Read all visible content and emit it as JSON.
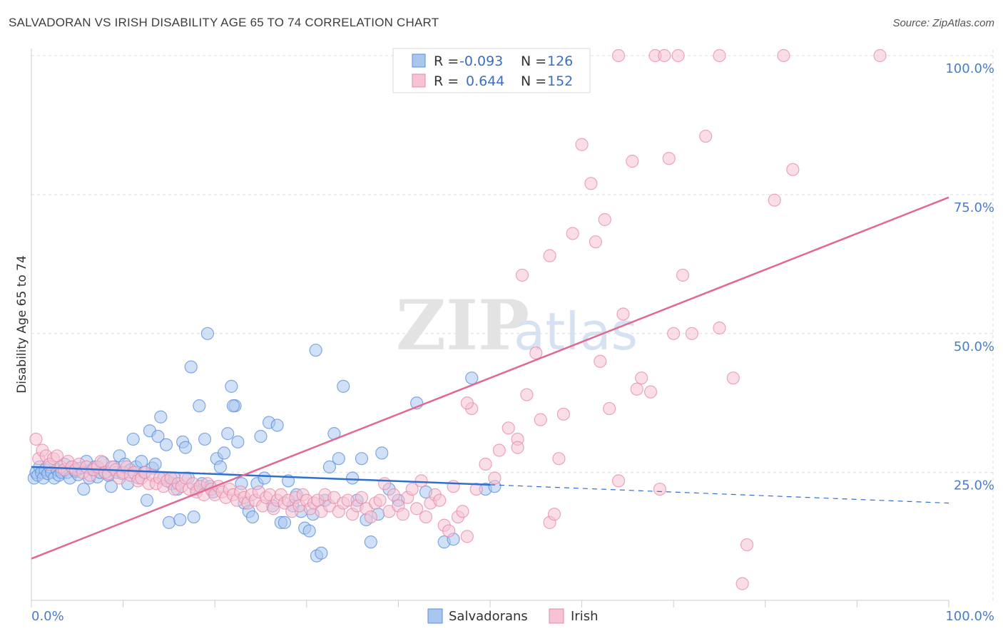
{
  "header": {
    "title": "SALVADORAN VS IRISH DISABILITY AGE 65 TO 74 CORRELATION CHART",
    "source": "Source: ZipAtlas.com"
  },
  "watermark": {
    "zip": "ZIP",
    "atlas": "atlas"
  },
  "colors": {
    "salvadoran": "#5b8fd9",
    "salvadoran_fill": "#a9c6ee",
    "salvadoran_line": "#2f6fcf",
    "irish": "#e58aa8",
    "irish_fill": "#f5c3d3",
    "irish_line": "#e06892",
    "grid": "#dddddd",
    "tick_text": "#4a7cc9"
  },
  "legend": {
    "rows": [
      {
        "r_label": "R =",
        "r_value": "-0.093",
        "n_label": "N =",
        "n_value": "126",
        "series": "salvadoran"
      },
      {
        "r_label": "R =",
        "r_value": "0.644",
        "n_label": "N =",
        "n_value": "152",
        "series": "irish"
      }
    ]
  },
  "bottom_legend": [
    "Salvadorans",
    "Irish"
  ],
  "chart_data": {
    "type": "scatter",
    "title": "SALVADORAN VS IRISH DISABILITY AGE 65 TO 74 CORRELATION CHART",
    "xlabel": "",
    "ylabel": "Disability Age 65 to 74",
    "xlim": [
      0,
      100
    ],
    "ylim": [
      2,
      100
    ],
    "x_tick_labels": [
      "0.0%",
      "100.0%"
    ],
    "y_ticks": [
      25,
      50,
      75,
      100
    ],
    "y_tick_labels": [
      "25.0%",
      "50.0%",
      "75.0%",
      "100.0%"
    ],
    "grid": true,
    "legend_position": "top-center",
    "series": [
      {
        "name": "Salvadorans",
        "r": -0.093,
        "n": 126,
        "trend": {
          "x": [
            0,
            50
          ],
          "y": [
            26,
            22.8
          ],
          "dashed_extension": {
            "x": [
              50,
              100
            ],
            "y": [
              22.8,
              19.5
            ]
          }
        },
        "points": [
          [
            0.3,
            24
          ],
          [
            0.5,
            25
          ],
          [
            0.7,
            24.5
          ],
          [
            0.9,
            26
          ],
          [
            1.1,
            25
          ],
          [
            1.3,
            24
          ],
          [
            1.5,
            25.5
          ],
          [
            1.8,
            24.8
          ],
          [
            2.0,
            26
          ],
          [
            2.2,
            25
          ],
          [
            2.5,
            24
          ],
          [
            2.8,
            25.5
          ],
          [
            3.0,
            24.5
          ],
          [
            3.3,
            25
          ],
          [
            3.6,
            26.5
          ],
          [
            3.9,
            25
          ],
          [
            4.2,
            24
          ],
          [
            4.5,
            26
          ],
          [
            4.8,
            25.2
          ],
          [
            5.1,
            24.6
          ],
          [
            5.4,
            25.8
          ],
          [
            5.7,
            22
          ],
          [
            6.0,
            27
          ],
          [
            6.3,
            24
          ],
          [
            6.6,
            25.5
          ],
          [
            6.9,
            26
          ],
          [
            7.2,
            24.2
          ],
          [
            7.5,
            25
          ],
          [
            7.8,
            26.8
          ],
          [
            8.1,
            25
          ],
          [
            8.4,
            24.5
          ],
          [
            8.7,
            22.5
          ],
          [
            9.0,
            26
          ],
          [
            9.3,
            25
          ],
          [
            9.6,
            28
          ],
          [
            9.9,
            24.8
          ],
          [
            10.2,
            26.5
          ],
          [
            10.5,
            23
          ],
          [
            10.8,
            25.5
          ],
          [
            11.1,
            31
          ],
          [
            11.4,
            26
          ],
          [
            11.7,
            24
          ],
          [
            12.0,
            27
          ],
          [
            12.3,
            25
          ],
          [
            12.6,
            20
          ],
          [
            12.9,
            32.5
          ],
          [
            13.2,
            25.8
          ],
          [
            13.5,
            26.5
          ],
          [
            13.8,
            31.5
          ],
          [
            14.1,
            35
          ],
          [
            14.4,
            24
          ],
          [
            14.7,
            30
          ],
          [
            15.0,
            16
          ],
          [
            15.3,
            23
          ],
          [
            15.6,
            24
          ],
          [
            15.9,
            22
          ],
          [
            16.2,
            16.5
          ],
          [
            16.5,
            30.5
          ],
          [
            16.8,
            29.5
          ],
          [
            17.1,
            24
          ],
          [
            17.4,
            44
          ],
          [
            17.7,
            17
          ],
          [
            18.0,
            22
          ],
          [
            18.3,
            37
          ],
          [
            18.6,
            23
          ],
          [
            18.9,
            31
          ],
          [
            19.2,
            50
          ],
          [
            19.5,
            22.5
          ],
          [
            19.8,
            21.5
          ],
          [
            20.2,
            27.5
          ],
          [
            20.6,
            26
          ],
          [
            21.0,
            28.5
          ],
          [
            21.4,
            32
          ],
          [
            21.8,
            40.5
          ],
          [
            22.2,
            37
          ],
          [
            22.5,
            30.5
          ],
          [
            22.9,
            23
          ],
          [
            23.2,
            19.5
          ],
          [
            23.7,
            18
          ],
          [
            24.1,
            17
          ],
          [
            24.6,
            23
          ],
          [
            25.0,
            31.5
          ],
          [
            25.4,
            24
          ],
          [
            25.9,
            34
          ],
          [
            26.3,
            19
          ],
          [
            26.8,
            33.5
          ],
          [
            27.2,
            16
          ],
          [
            27.6,
            16
          ],
          [
            28.0,
            23.5
          ],
          [
            28.5,
            19
          ],
          [
            28.9,
            21
          ],
          [
            29.4,
            18
          ],
          [
            29.8,
            15
          ],
          [
            30.3,
            14.5
          ],
          [
            30.7,
            17.5
          ],
          [
            31.1,
            10
          ],
          [
            31.6,
            10.5
          ],
          [
            31.0,
            47
          ],
          [
            32.0,
            20
          ],
          [
            32.5,
            26
          ],
          [
            33.0,
            32
          ],
          [
            33.5,
            27.5
          ],
          [
            34.0,
            40.5
          ],
          [
            35.0,
            24
          ],
          [
            35.5,
            20
          ],
          [
            36.0,
            27.5
          ],
          [
            36.5,
            16.5
          ],
          [
            37.0,
            12.5
          ],
          [
            37.8,
            17.5
          ],
          [
            38.2,
            28.5
          ],
          [
            39.0,
            22
          ],
          [
            40.0,
            20
          ],
          [
            42.0,
            37.5
          ],
          [
            43.0,
            21.5
          ],
          [
            45.0,
            12.5
          ],
          [
            46.0,
            13
          ],
          [
            48.0,
            42
          ],
          [
            49.5,
            22
          ],
          [
            50.5,
            22.5
          ],
          [
            22.0,
            37
          ]
        ]
      },
      {
        "name": "Irish",
        "r": 0.644,
        "n": 152,
        "trend": {
          "x": [
            0,
            100
          ],
          "y": [
            9.5,
            74.5
          ]
        },
        "points": [
          [
            0.5,
            31
          ],
          [
            0.8,
            27.5
          ],
          [
            1.2,
            29
          ],
          [
            1.6,
            28
          ],
          [
            2.0,
            26.5
          ],
          [
            2.4,
            27.5
          ],
          [
            2.8,
            28
          ],
          [
            3.2,
            26
          ],
          [
            3.6,
            25.5
          ],
          [
            4.0,
            27
          ],
          [
            4.4,
            26
          ],
          [
            4.8,
            25.5
          ],
          [
            5.2,
            26.5
          ],
          [
            5.6,
            25
          ],
          [
            6.0,
            26
          ],
          [
            6.4,
            24.5
          ],
          [
            6.8,
            25.5
          ],
          [
            7.2,
            26
          ],
          [
            7.6,
            27
          ],
          [
            8.0,
            25
          ],
          [
            8.4,
            24.8
          ],
          [
            8.8,
            26
          ],
          [
            9.2,
            25.5
          ],
          [
            9.6,
            24
          ],
          [
            10.0,
            25
          ],
          [
            10.4,
            26
          ],
          [
            10.8,
            24.5
          ],
          [
            11.2,
            25
          ],
          [
            11.6,
            23.5
          ],
          [
            12.0,
            24
          ],
          [
            12.4,
            25
          ],
          [
            12.8,
            23
          ],
          [
            13.2,
            24.5
          ],
          [
            13.6,
            23
          ],
          [
            14.0,
            24
          ],
          [
            14.4,
            22.5
          ],
          [
            14.8,
            23.5
          ],
          [
            15.2,
            24
          ],
          [
            15.6,
            22
          ],
          [
            16.0,
            23
          ],
          [
            16.4,
            22.5
          ],
          [
            16.8,
            24
          ],
          [
            17.2,
            22
          ],
          [
            17.6,
            23
          ],
          [
            18.0,
            21.5
          ],
          [
            18.4,
            22.5
          ],
          [
            18.8,
            21
          ],
          [
            19.2,
            23
          ],
          [
            19.6,
            22
          ],
          [
            20.0,
            21
          ],
          [
            20.4,
            22.5
          ],
          [
            20.8,
            21.5
          ],
          [
            21.2,
            20.5
          ],
          [
            21.6,
            22
          ],
          [
            22.0,
            21
          ],
          [
            22.4,
            20
          ],
          [
            22.8,
            21.5
          ],
          [
            23.2,
            20.5
          ],
          [
            23.6,
            19.5
          ],
          [
            24.0,
            21
          ],
          [
            24.4,
            20
          ],
          [
            24.8,
            21.5
          ],
          [
            25.2,
            19
          ],
          [
            25.6,
            20.5
          ],
          [
            26.0,
            21
          ],
          [
            26.4,
            18.5
          ],
          [
            26.8,
            20
          ],
          [
            27.2,
            21
          ],
          [
            27.6,
            19.5
          ],
          [
            28.0,
            20
          ],
          [
            28.4,
            18
          ],
          [
            28.8,
            20.5
          ],
          [
            29.2,
            19
          ],
          [
            29.6,
            21
          ],
          [
            30.0,
            20
          ],
          [
            30.4,
            18.5
          ],
          [
            30.8,
            19.5
          ],
          [
            31.2,
            20
          ],
          [
            31.6,
            18
          ],
          [
            32.0,
            21
          ],
          [
            32.5,
            19
          ],
          [
            33.0,
            20.5
          ],
          [
            33.5,
            18
          ],
          [
            34.0,
            19.5
          ],
          [
            34.5,
            20
          ],
          [
            35.0,
            17.5
          ],
          [
            35.5,
            19
          ],
          [
            36.0,
            20.5
          ],
          [
            36.5,
            18.5
          ],
          [
            37.0,
            17
          ],
          [
            37.5,
            19.5
          ],
          [
            38.0,
            20
          ],
          [
            38.5,
            23
          ],
          [
            39.0,
            18
          ],
          [
            39.5,
            21
          ],
          [
            40.0,
            19
          ],
          [
            40.5,
            17.5
          ],
          [
            41.0,
            20.5
          ],
          [
            41.5,
            22
          ],
          [
            42.0,
            18.5
          ],
          [
            42.5,
            23.5
          ],
          [
            43.0,
            17
          ],
          [
            43.5,
            19.5
          ],
          [
            44.0,
            21
          ],
          [
            44.5,
            20
          ],
          [
            45.0,
            15.5
          ],
          [
            45.5,
            14.5
          ],
          [
            46.0,
            22.5
          ],
          [
            46.5,
            17
          ],
          [
            47.0,
            18
          ],
          [
            47.5,
            13.5
          ],
          [
            48.5,
            22
          ],
          [
            49.5,
            26.5
          ],
          [
            50.5,
            24
          ],
          [
            51.0,
            29
          ],
          [
            52.0,
            33
          ],
          [
            53.0,
            31
          ],
          [
            54.0,
            39
          ],
          [
            55.0,
            46.5
          ],
          [
            55.5,
            34.5
          ],
          [
            56.5,
            16
          ],
          [
            57.0,
            17.5
          ],
          [
            58.0,
            35.5
          ],
          [
            59.0,
            68
          ],
          [
            60.0,
            84
          ],
          [
            61.0,
            77
          ],
          [
            61.5,
            66.5
          ],
          [
            62.0,
            45
          ],
          [
            62.5,
            70.5
          ],
          [
            63.0,
            36.5
          ],
          [
            64.0,
            23.5
          ],
          [
            64.5,
            53.5
          ],
          [
            65.5,
            81
          ],
          [
            66.0,
            40
          ],
          [
            66.5,
            42
          ],
          [
            67.5,
            39.5
          ],
          [
            68.5,
            22
          ],
          [
            69.5,
            81.5
          ],
          [
            70.0,
            50
          ],
          [
            71.0,
            60.5
          ],
          [
            72.0,
            50
          ],
          [
            73.5,
            85.5
          ],
          [
            75.0,
            51
          ],
          [
            76.5,
            42
          ],
          [
            77.5,
            5
          ],
          [
            78.0,
            12
          ],
          [
            81.0,
            74
          ],
          [
            83.0,
            79.5
          ],
          [
            82.0,
            100
          ],
          [
            92.5,
            100
          ],
          [
            68.0,
            100
          ],
          [
            69.0,
            100
          ],
          [
            70.5,
            100
          ],
          [
            75.0,
            100
          ],
          [
            64.0,
            100
          ],
          [
            59.5,
            100
          ],
          [
            56.5,
            64
          ],
          [
            53.5,
            60.5
          ],
          [
            48.0,
            36.5
          ],
          [
            47.5,
            37.5
          ],
          [
            53.0,
            29.5
          ],
          [
            57.5,
            27.5
          ]
        ]
      }
    ]
  }
}
